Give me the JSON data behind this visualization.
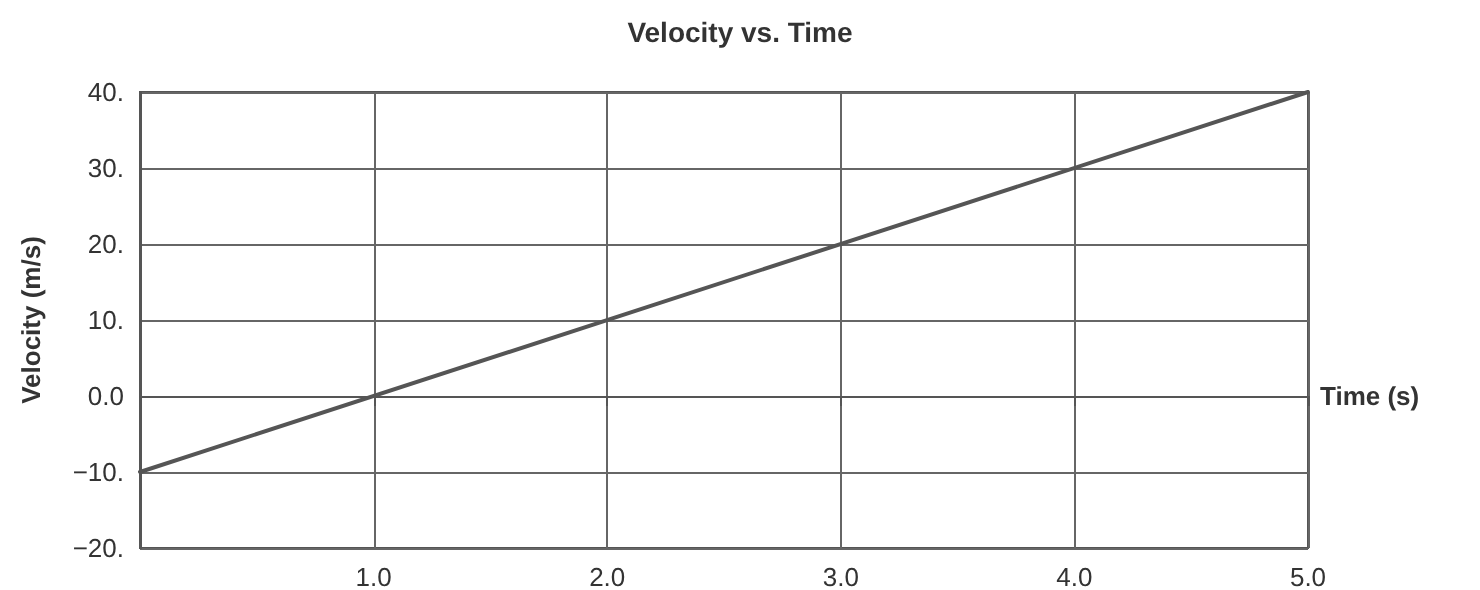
{
  "chart_data": {
    "type": "line",
    "title": "Velocity vs. Time",
    "xlabel": "Time (s)",
    "ylabel": "Velocity (m/s)",
    "x": [
      0,
      5
    ],
    "series": [
      {
        "color": "#555555",
        "values": [
          -10,
          40
        ]
      }
    ],
    "xlim": [
      0,
      5
    ],
    "xticks": [
      {
        "value": 1,
        "label": "1.0"
      },
      {
        "value": 2,
        "label": "2.0"
      },
      {
        "value": 3,
        "label": "3.0"
      },
      {
        "value": 4,
        "label": "4.0"
      },
      {
        "value": 5,
        "label": "5.0"
      }
    ],
    "ylim": [
      -20,
      40
    ],
    "yticks": [
      {
        "value": -20,
        "label": "−20."
      },
      {
        "value": -10,
        "label": "−10."
      },
      {
        "value": 0,
        "label": "0.0"
      },
      {
        "value": 10,
        "label": "10."
      },
      {
        "value": 20,
        "label": "20."
      },
      {
        "value": 30,
        "label": "30."
      },
      {
        "value": 40,
        "label": "40."
      }
    ],
    "grid": true,
    "marker": "none",
    "line_style": "solid"
  }
}
